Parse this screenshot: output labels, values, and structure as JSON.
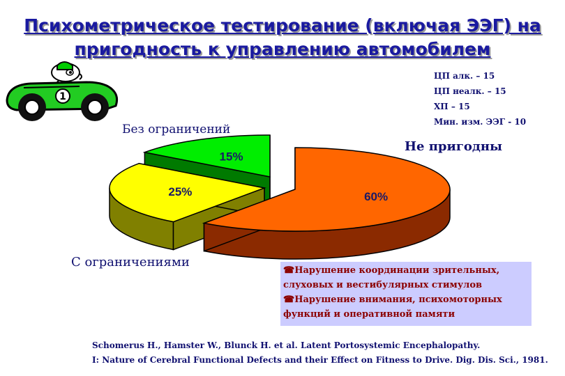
{
  "title": {
    "line1": "Психометрическое тестирование (включая ЭЭГ) на",
    "line2": "пригодность к управлению автомобилем"
  },
  "groups": [
    "ЦП алк. – 15",
    "ЦП неалк. – 15",
    "ХП – 15",
    "Мин. изм. ЭЭГ  - 10"
  ],
  "car_badge": "1",
  "chart_data": {
    "type": "pie",
    "title": "",
    "slices": [
      {
        "label": "Не пригодны",
        "value": 60,
        "value_label": "60%",
        "color": "#ff6600",
        "side_color": "#8b2a00"
      },
      {
        "label": "С ограничениями",
        "value": 25,
        "value_label": "25%",
        "color": "#ffff00",
        "side_color": "#808000"
      },
      {
        "label": "Без ограничений",
        "value": 15,
        "value_label": "15%",
        "color": "#00ee00",
        "side_color": "#007a00"
      }
    ],
    "style": "3d-exploded",
    "legend": "none"
  },
  "notes": {
    "icon": "phone-icon",
    "item1_line1": "Нарушение координации зрительных,",
    "item1_line2": "слуховых и вестибулярных стимулов",
    "item2_line1": "Нарушение внимания, психомоторных",
    "item2_line2": "функций и оперативной памяти",
    "background": "#ccccff"
  },
  "reference": {
    "line1": "Schomerus H., Hamster W., Blunck H. et al. Latent Portosystemic Encephalopathy.",
    "line2": "I: Nature of Cerebral Functional Defects and their Effect on Fitness to Drive. Dig. Dis. Sci., 1981."
  }
}
